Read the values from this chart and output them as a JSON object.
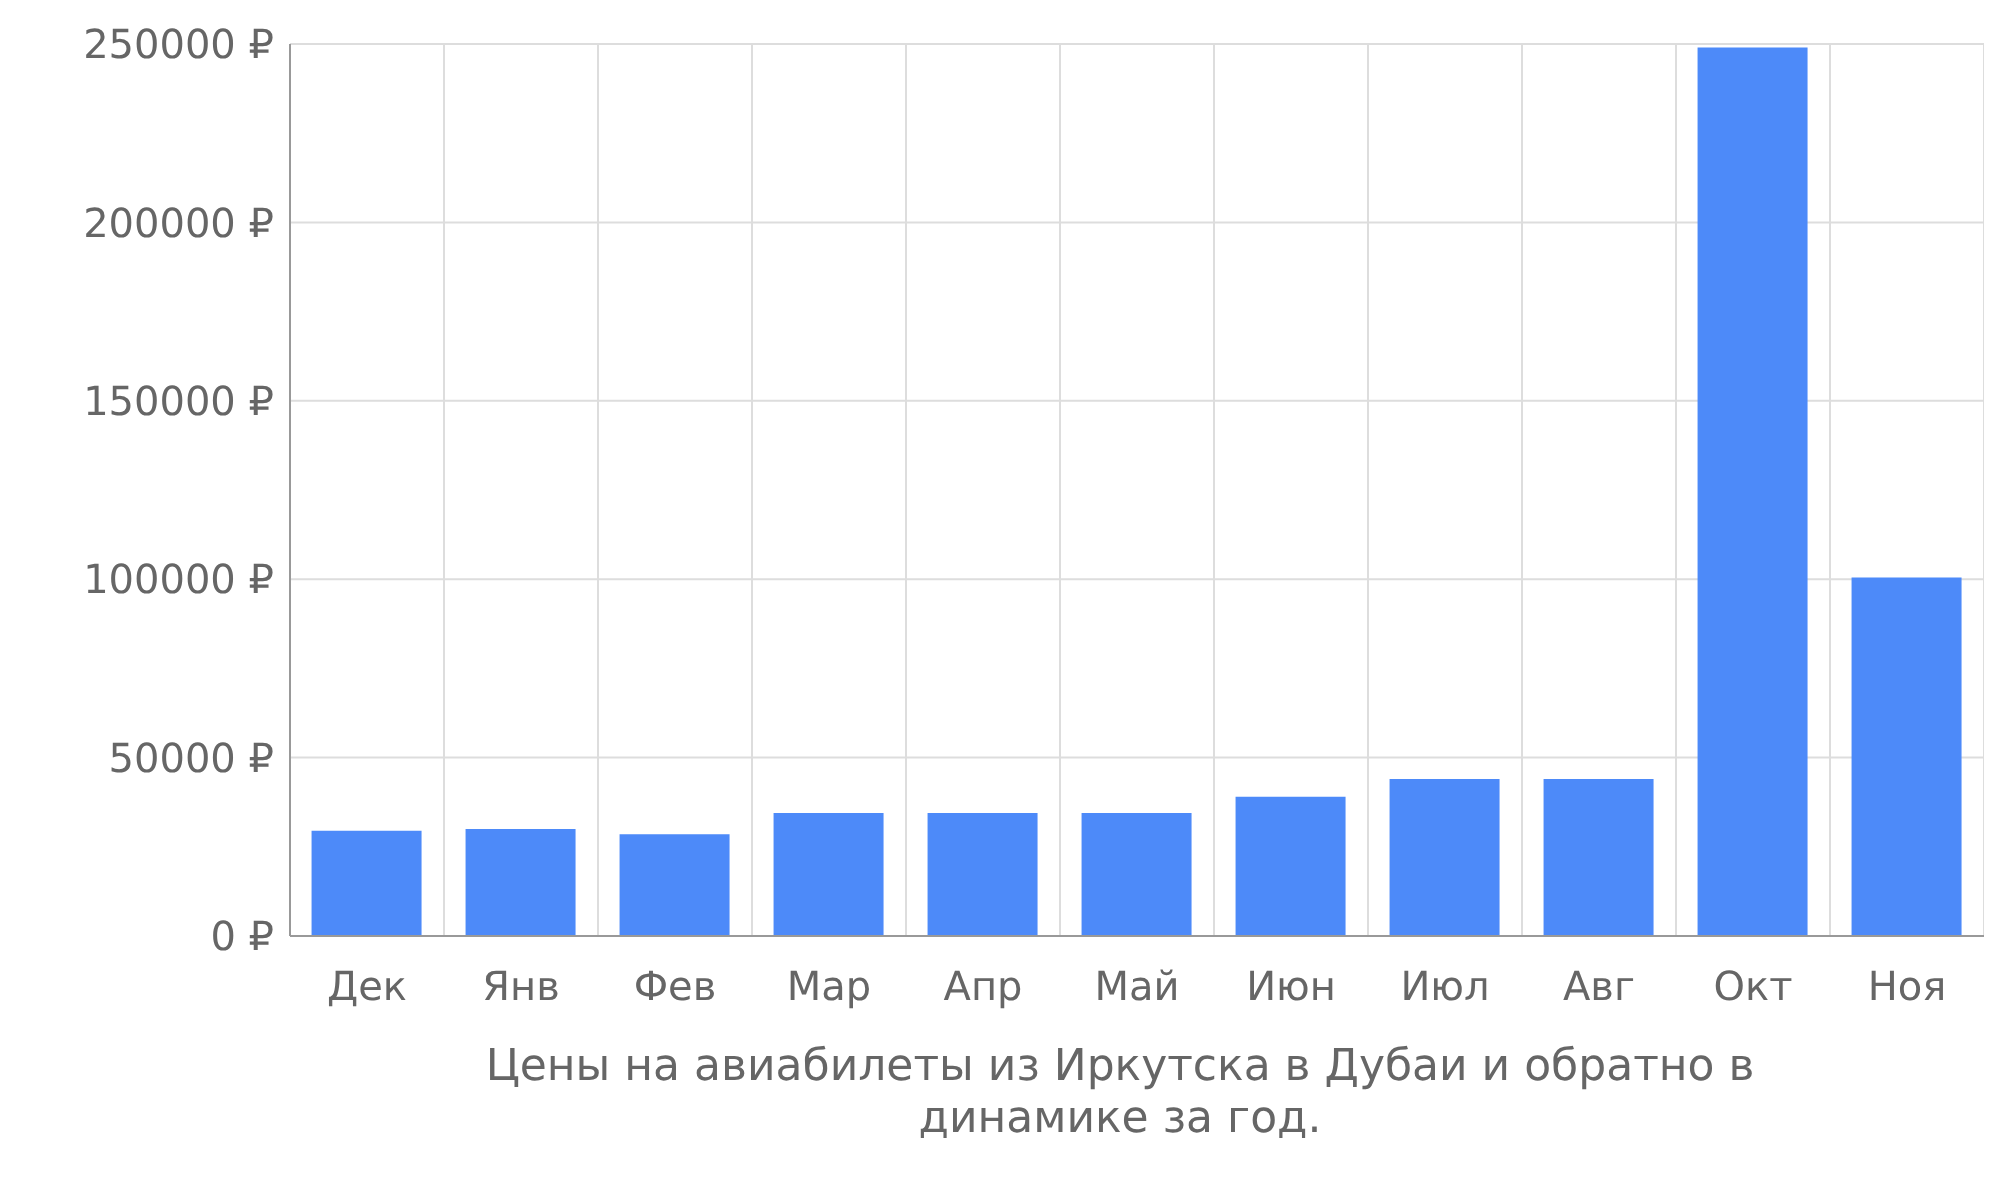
{
  "chart_data": {
    "type": "bar",
    "xlabel": "Цены на авиабилеты из Иркутска в Дубаи и обратно в динамике за год.",
    "categories": [
      "Дек",
      "Янв",
      "Фев",
      "Мар",
      "Апр",
      "Май",
      "Июн",
      "Июл",
      "Авг",
      "Окт",
      "Ноя"
    ],
    "values": [
      29500,
      30000,
      28500,
      34500,
      34500,
      34500,
      39000,
      44000,
      44000,
      249000,
      100500
    ],
    "color": "#4d8af9",
    "ylim": [
      0,
      250000
    ],
    "yticks": [
      {
        "value": 0,
        "label": "0 ₽"
      },
      {
        "value": 50000,
        "label": "50000 ₽"
      },
      {
        "value": 100000,
        "label": "100000 ₽"
      },
      {
        "value": 150000,
        "label": "150000 ₽"
      },
      {
        "value": 200000,
        "label": "200000 ₽"
      },
      {
        "value": 250000,
        "label": "250000 ₽"
      }
    ],
    "grid": true
  }
}
